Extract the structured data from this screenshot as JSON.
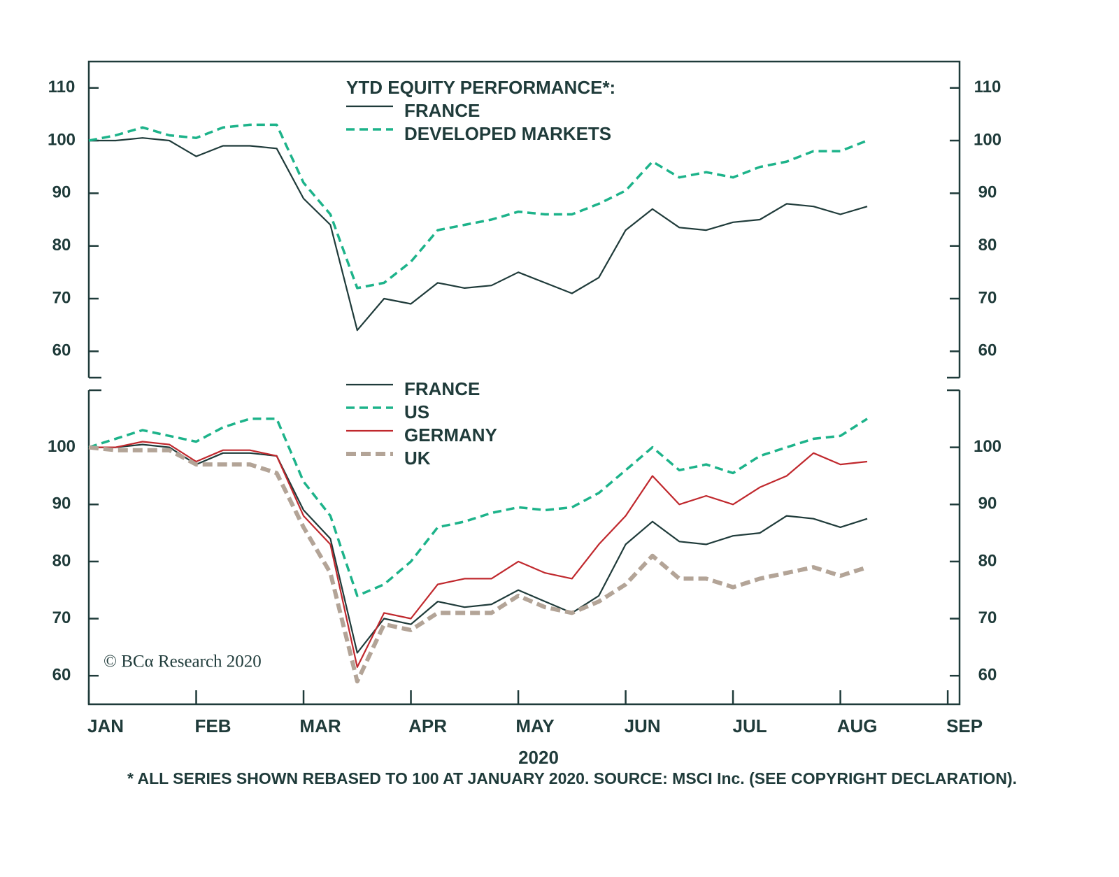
{
  "chart_data": [
    {
      "type": "line",
      "title": "YTD EQUITY PERFORMANCE*:",
      "x": [
        0,
        0.25,
        0.5,
        0.75,
        1,
        1.25,
        1.5,
        1.75,
        2,
        2.25,
        2.5,
        2.75,
        3,
        3.25,
        3.5,
        3.75,
        4,
        4.25,
        4.5,
        4.75,
        5,
        5.25,
        5.5,
        5.75,
        6,
        6.25,
        6.5,
        6.75,
        7,
        7.25
      ],
      "xlim": [
        0,
        8.11
      ],
      "ylim": [
        55,
        115
      ],
      "yticks": [
        60,
        70,
        80,
        90,
        100,
        110
      ],
      "series": [
        {
          "name": "FRANCE",
          "color": "#1f3b3a",
          "style": "solid",
          "values": [
            100,
            100,
            100.5,
            100,
            97,
            99,
            99,
            98.5,
            89,
            84,
            64,
            70,
            69,
            73,
            72,
            72.5,
            75,
            73,
            71,
            74,
            83,
            87,
            83.5,
            83,
            84.5,
            85,
            88,
            87.5,
            86,
            87.5
          ]
        },
        {
          "name": "DEVELOPED MARKETS",
          "color": "#1db38a",
          "style": "dashed",
          "values": [
            100,
            101,
            102.5,
            101,
            100.5,
            102.5,
            103,
            103,
            92,
            86,
            72,
            73,
            77,
            83,
            84,
            85,
            86.5,
            86,
            86,
            88,
            90.5,
            96,
            93,
            94,
            93,
            95,
            96,
            98,
            98,
            100
          ]
        }
      ]
    },
    {
      "type": "line",
      "x_label": "2020",
      "footnote": "* ALL SERIES SHOWN REBASED TO 100 AT JANUARY 2020. SOURCE: MSCI Inc. (SEE COPYRIGHT DECLARATION).",
      "copyright": "© BCα Research 2020",
      "x": [
        0,
        0.25,
        0.5,
        0.75,
        1,
        1.25,
        1.5,
        1.75,
        2,
        2.25,
        2.5,
        2.75,
        3,
        3.25,
        3.5,
        3.75,
        4,
        4.25,
        4.5,
        4.75,
        5,
        5.25,
        5.5,
        5.75,
        6,
        6.25,
        6.5,
        6.75,
        7,
        7.25
      ],
      "xlim": [
        0,
        8.11
      ],
      "xticks": [
        {
          "value": 0,
          "label": "JAN"
        },
        {
          "value": 1,
          "label": "FEB"
        },
        {
          "value": 2,
          "label": "MAR"
        },
        {
          "value": 3,
          "label": "APR"
        },
        {
          "value": 4,
          "label": "MAY"
        },
        {
          "value": 5,
          "label": "JUN"
        },
        {
          "value": 6,
          "label": "JUL"
        },
        {
          "value": 7,
          "label": "AUG"
        },
        {
          "value": 8,
          "label": "SEP"
        }
      ],
      "ylim": [
        55,
        110
      ],
      "yticks": [
        60,
        70,
        80,
        90,
        100
      ],
      "series": [
        {
          "name": "FRANCE",
          "color": "#1f3b3a",
          "style": "solid",
          "values": [
            100,
            100,
            100.5,
            100,
            97,
            99,
            99,
            98.5,
            89,
            84,
            64,
            70,
            69,
            73,
            72,
            72.5,
            75,
            73,
            71,
            74,
            83,
            87,
            83.5,
            83,
            84.5,
            85,
            88,
            87.5,
            86,
            87.5
          ]
        },
        {
          "name": "US",
          "color": "#1db38a",
          "style": "dashed",
          "values": [
            100,
            101.5,
            103,
            102,
            101,
            103.5,
            105,
            105,
            94,
            88,
            74,
            76,
            80,
            86,
            87,
            88.5,
            89.5,
            89,
            89.5,
            92,
            96,
            100,
            96,
            97,
            95.5,
            98.5,
            100,
            101.5,
            102,
            105
          ]
        },
        {
          "name": "GERMANY",
          "color": "#c0282d",
          "style": "solid",
          "values": [
            100,
            100,
            101,
            100.5,
            97.5,
            99.5,
            99.5,
            98.5,
            88,
            83,
            61.5,
            71,
            70,
            76,
            77,
            77,
            80,
            78,
            77,
            83,
            88,
            95,
            90,
            91.5,
            90,
            93,
            95,
            99,
            97,
            97.5
          ]
        },
        {
          "name": "UK",
          "color": "#b3a497",
          "style": "thick-dashed",
          "values": [
            100,
            99.5,
            99.5,
            99.5,
            97,
            97,
            97,
            95.5,
            86,
            78,
            59,
            69,
            68,
            71,
            71,
            71,
            74,
            72,
            71,
            73,
            76,
            81,
            77,
            77,
            75.5,
            77,
            78,
            79,
            77.5,
            79
          ]
        }
      ]
    }
  ]
}
